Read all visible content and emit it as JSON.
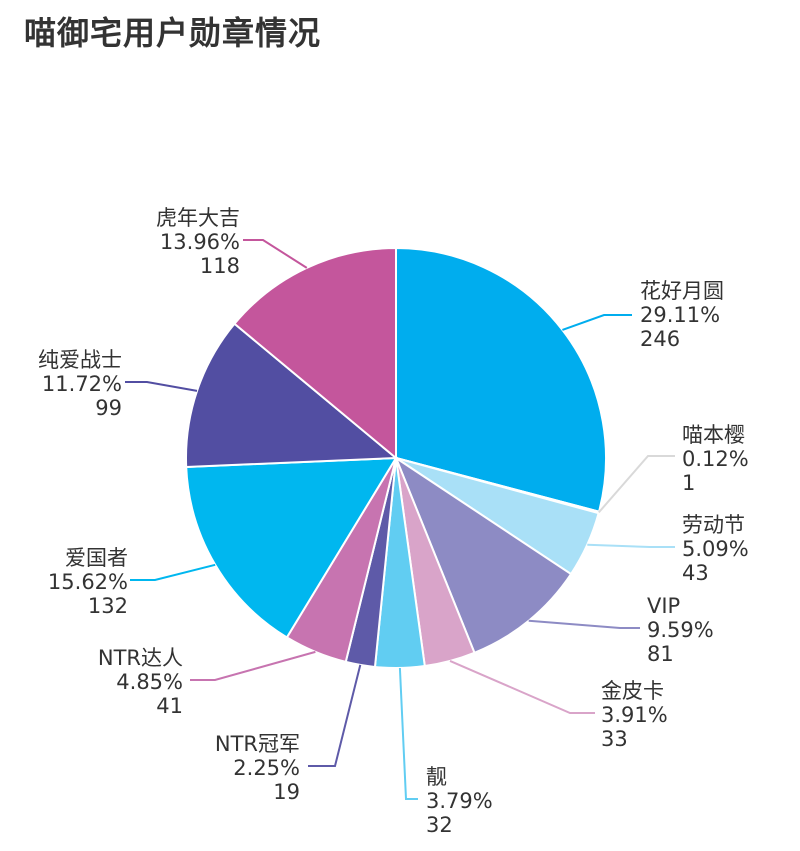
{
  "title": "喵御宅用户勋章情况",
  "chart_data": {
    "type": "pie",
    "title": "喵御宅用户勋章情况",
    "slices": [
      {
        "name": "花好月圆",
        "percent": "29.11%",
        "value": 246,
        "color": "#00adee"
      },
      {
        "name": "喵本樱",
        "percent": "0.12%",
        "value": 1,
        "color": "#d9d9d9"
      },
      {
        "name": "劳动节",
        "percent": "5.09%",
        "value": 43,
        "color": "#a9e0f7"
      },
      {
        "name": "VIP",
        "percent": "9.59%",
        "value": 81,
        "color": "#8d8bc4"
      },
      {
        "name": "金皮卡",
        "percent": "3.91%",
        "value": 33,
        "color": "#d9a4c9"
      },
      {
        "name": "靓",
        "percent": "3.79%",
        "value": 32,
        "color": "#61cdf2"
      },
      {
        "name": "NTR冠军",
        "percent": "2.25%",
        "value": 19,
        "color": "#5e5aa8"
      },
      {
        "name": "NTR达人",
        "percent": "4.85%",
        "value": 41,
        "color": "#c774b0"
      },
      {
        "name": "爱国者",
        "percent": "15.62%",
        "value": 132,
        "color": "#00b7ef"
      },
      {
        "name": "纯爱战士",
        "percent": "11.72%",
        "value": 99,
        "color": "#524ea2"
      },
      {
        "name": "虎年大吉",
        "percent": "13.96%",
        "value": 118,
        "color": "#c4569c"
      }
    ]
  }
}
